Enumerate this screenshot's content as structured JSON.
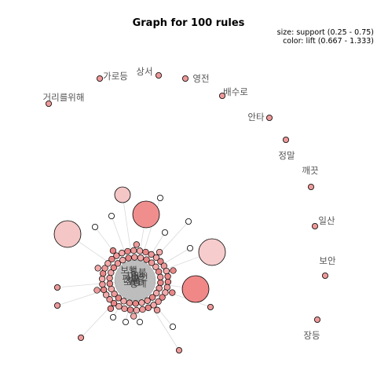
{
  "chart_data": {
    "type": "network",
    "title": "Graph for 100 rules",
    "legend": {
      "size": "size: support (0.25 - 0.75)",
      "color": "color: lift (0.667 - 1.333)"
    },
    "item_labels": [
      "가로등",
      "상서",
      "영전",
      "배수로",
      "안타",
      "정말",
      "깨끗",
      "일산",
      "보안",
      "장등",
      "거리를위해"
    ],
    "hub_overlay_labels": [
      "보행",
      "등불",
      "치안",
      "안전",
      "편의",
      "밝음",
      "조명",
      "동네"
    ]
  }
}
